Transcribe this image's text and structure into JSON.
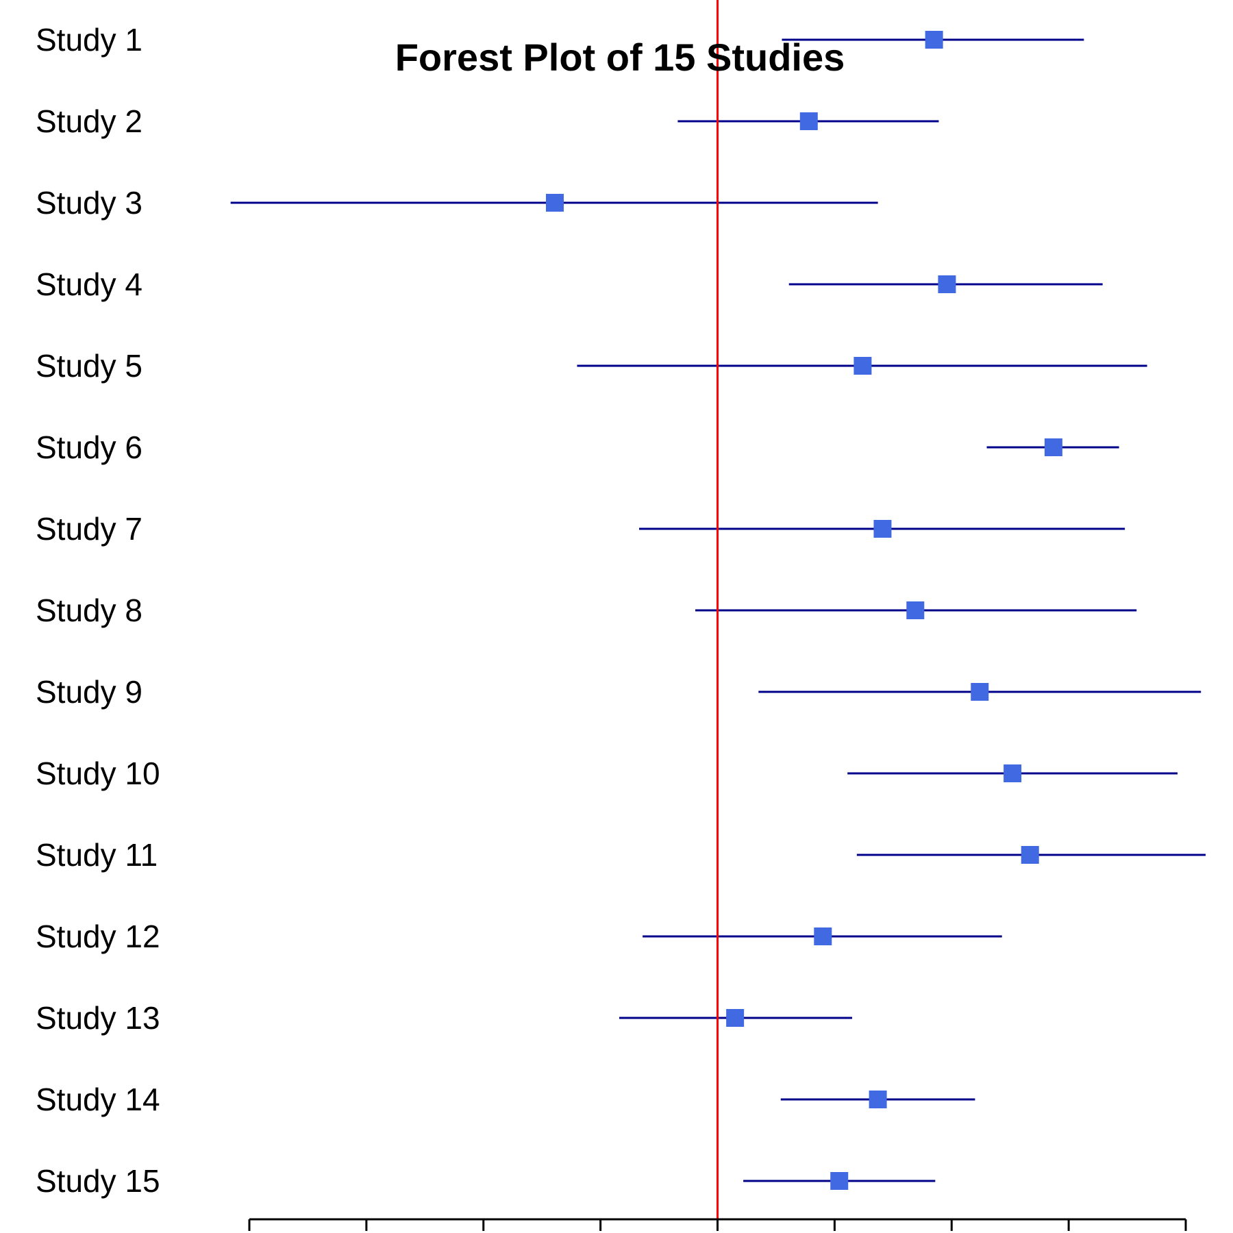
{
  "chart_data": {
    "type": "forest",
    "title": "Forest Plot of 15 Studies",
    "xlabel": "",
    "ylabel": "",
    "xlim": [
      -4,
      4
    ],
    "x_ticks": [
      -4,
      -3,
      -2,
      -1,
      0,
      1,
      2,
      3,
      4
    ],
    "tick_labels_visible": false,
    "reference_line": 0,
    "grid": false,
    "colors": {
      "point": "#4169E1",
      "ci_line": "#00008B",
      "reference_line": "#FF0000",
      "axis": "#000000"
    },
    "studies": [
      {
        "label": "Study 1",
        "estimate": 1.85,
        "lower": 0.55,
        "upper": 3.13
      },
      {
        "label": "Study 2",
        "estimate": 0.78,
        "lower": -0.34,
        "upper": 1.89
      },
      {
        "label": "Study 3",
        "estimate": -1.39,
        "lower": -4.16,
        "upper": 1.37
      },
      {
        "label": "Study 4",
        "estimate": 1.96,
        "lower": 0.61,
        "upper": 3.29
      },
      {
        "label": "Study 5",
        "estimate": 1.24,
        "lower": -1.2,
        "upper": 3.67
      },
      {
        "label": "Study 6",
        "estimate": 2.87,
        "lower": 2.3,
        "upper": 3.43
      },
      {
        "label": "Study 7",
        "estimate": 1.41,
        "lower": -0.67,
        "upper": 3.48
      },
      {
        "label": "Study 8",
        "estimate": 1.69,
        "lower": -0.19,
        "upper": 3.58
      },
      {
        "label": "Study 9",
        "estimate": 2.24,
        "lower": 0.35,
        "upper": 4.13
      },
      {
        "label": "Study 10",
        "estimate": 2.52,
        "lower": 1.11,
        "upper": 3.93
      },
      {
        "label": "Study 11",
        "estimate": 2.67,
        "lower": 1.19,
        "upper": 4.17
      },
      {
        "label": "Study 12",
        "estimate": 0.9,
        "lower": -0.64,
        "upper": 2.43
      },
      {
        "label": "Study 13",
        "estimate": 0.15,
        "lower": -0.84,
        "upper": 1.15
      },
      {
        "label": "Study 14",
        "estimate": 1.37,
        "lower": 0.54,
        "upper": 2.2
      },
      {
        "label": "Study 15",
        "estimate": 1.04,
        "lower": 0.22,
        "upper": 1.86
      }
    ]
  }
}
